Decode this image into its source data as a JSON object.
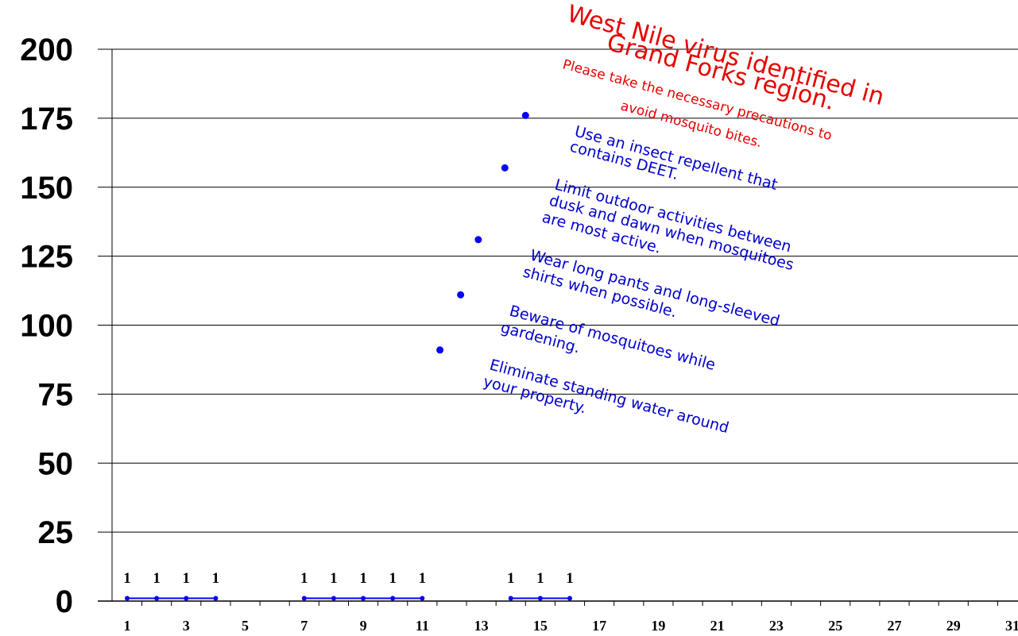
{
  "chart_data": {
    "type": "line",
    "title": "",
    "xlabel": "",
    "ylabel": "",
    "ylim": [
      0,
      200
    ],
    "yticks": [
      0,
      25,
      50,
      75,
      100,
      125,
      150,
      175,
      200
    ],
    "xlim": [
      1,
      31
    ],
    "xticks": [
      1,
      3,
      5,
      7,
      9,
      11,
      13,
      15,
      17,
      19,
      21,
      23,
      25,
      27,
      29,
      31
    ],
    "grid": "horizontal",
    "series": [
      {
        "color": "#0000ff",
        "segments": [
          [
            [
              1,
              1
            ],
            [
              2,
              1
            ],
            [
              3,
              1
            ],
            [
              4,
              1
            ]
          ],
          [
            [
              7,
              1
            ],
            [
              8,
              1
            ],
            [
              9,
              1
            ],
            [
              10,
              1
            ],
            [
              11,
              1
            ]
          ],
          [
            [
              14,
              1
            ],
            [
              15,
              1
            ],
            [
              16,
              1
            ]
          ]
        ],
        "data_labels": [
          {
            "x": 1,
            "text": "1"
          },
          {
            "x": 2,
            "text": "1"
          },
          {
            "x": 3,
            "text": "1"
          },
          {
            "x": 4,
            "text": "1"
          },
          {
            "x": 7,
            "text": "1"
          },
          {
            "x": 8,
            "text": "1"
          },
          {
            "x": 9,
            "text": "1"
          },
          {
            "x": 10,
            "text": "1"
          },
          {
            "x": 11,
            "text": "1"
          },
          {
            "x": 14,
            "text": "1"
          },
          {
            "x": 15,
            "text": "1"
          },
          {
            "x": 16,
            "text": "1"
          }
        ]
      },
      {
        "color": "#0000ff",
        "type": "scatter",
        "points": [
          [
            11.6,
            91
          ],
          [
            12.3,
            111
          ],
          [
            12.9,
            131
          ],
          [
            13.8,
            157
          ],
          [
            14.5,
            176
          ]
        ]
      }
    ],
    "annotations": [
      {
        "text": "West Nile virus identified in",
        "color": "#e60000"
      },
      {
        "text": "Grand Forks region.",
        "color": "#e60000"
      },
      {
        "text": "Please take the necessary precautions to",
        "color": "#e60000"
      },
      {
        "text": "avoid mosquito bites.",
        "color": "#e60000"
      },
      {
        "text": "Use an insect repellent that",
        "color": "#0000cc"
      },
      {
        "text": "contains DEET.",
        "color": "#0000cc"
      },
      {
        "text": "Limit outdoor activities between",
        "color": "#0000cc"
      },
      {
        "text": "dusk and dawn when mosquitoes",
        "color": "#0000cc"
      },
      {
        "text": "are most active.",
        "color": "#0000cc"
      },
      {
        "text": "Wear long pants and long-sleeved",
        "color": "#0000cc"
      },
      {
        "text": "shirts when possible.",
        "color": "#0000cc"
      },
      {
        "text": "Beware of mosquitoes while",
        "color": "#0000cc"
      },
      {
        "text": "gardening.",
        "color": "#0000cc"
      },
      {
        "text": "Eliminate standing water around",
        "color": "#0000cc"
      },
      {
        "text": "your property.",
        "color": "#0000cc"
      }
    ]
  }
}
